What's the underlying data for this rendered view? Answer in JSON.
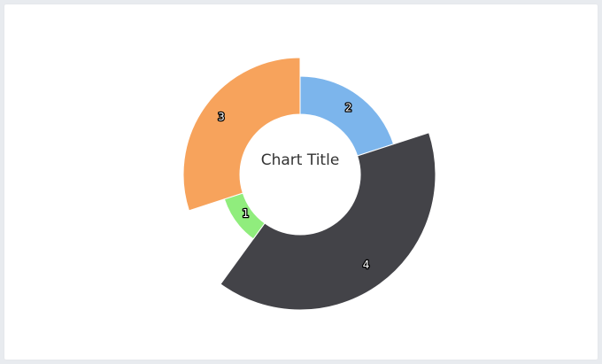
{
  "chart_data": {
    "type": "pie",
    "subtype": "rose-donut",
    "title": "Chart Title",
    "categories": [
      "2",
      "4",
      "1",
      "3"
    ],
    "values": [
      2,
      4,
      1,
      3
    ],
    "angles_deg": [
      72,
      144,
      36,
      108
    ],
    "colors": [
      "#7cb5ec",
      "#434348",
      "#90ed7d",
      "#f7a35c"
    ],
    "legend": "none"
  }
}
